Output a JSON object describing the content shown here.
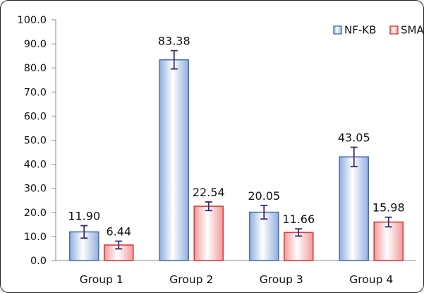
{
  "chart_data": {
    "type": "bar",
    "categories": [
      "Group 1",
      "Group 2",
      "Group 3",
      "Group 4"
    ],
    "series": [
      {
        "name": "NF-KB",
        "values": [
          11.9,
          83.38,
          20.05,
          43.05
        ],
        "value_labels": [
          "11.90",
          "83.38",
          "20.05",
          "43.05"
        ],
        "error": [
          2.6,
          3.8,
          2.8,
          4.0
        ],
        "color": "#4f6fb8",
        "fill_light": "#ffffff",
        "fill_dark": "#8fb0df"
      },
      {
        "name": "SMA",
        "values": [
          6.44,
          22.54,
          11.66,
          15.98
        ],
        "value_labels": [
          "6.44",
          "22.54",
          "11.66",
          "15.98"
        ],
        "error": [
          1.6,
          1.8,
          1.5,
          2.0
        ],
        "color": "#e23b3b",
        "fill_light": "#ffffff",
        "fill_dark": "#f29a9a"
      }
    ],
    "ylim": [
      0,
      100
    ],
    "yticks": [
      "0.0",
      "10.0",
      "20.0",
      "30.0",
      "40.0",
      "50.0",
      "60.0",
      "70.0",
      "80.0",
      "90.0",
      "100.0"
    ],
    "grid": false,
    "legend_position": "top-right",
    "error_bar_color": "#3a2a6a",
    "axis_color": "#8a8a8a"
  }
}
